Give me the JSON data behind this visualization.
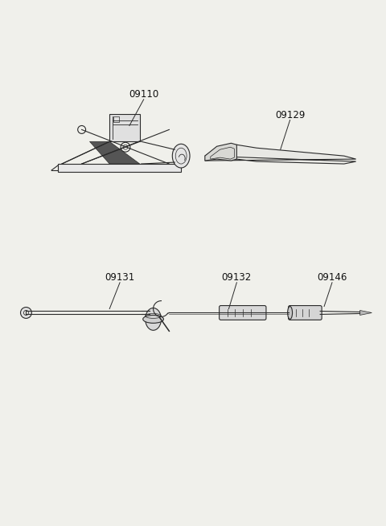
{
  "bg_color": "#f0f0eb",
  "line_color": "#2a2a2a",
  "label_color": "#111111",
  "figsize": [
    4.8,
    6.55
  ],
  "dpi": 100,
  "font_size": 8.5
}
